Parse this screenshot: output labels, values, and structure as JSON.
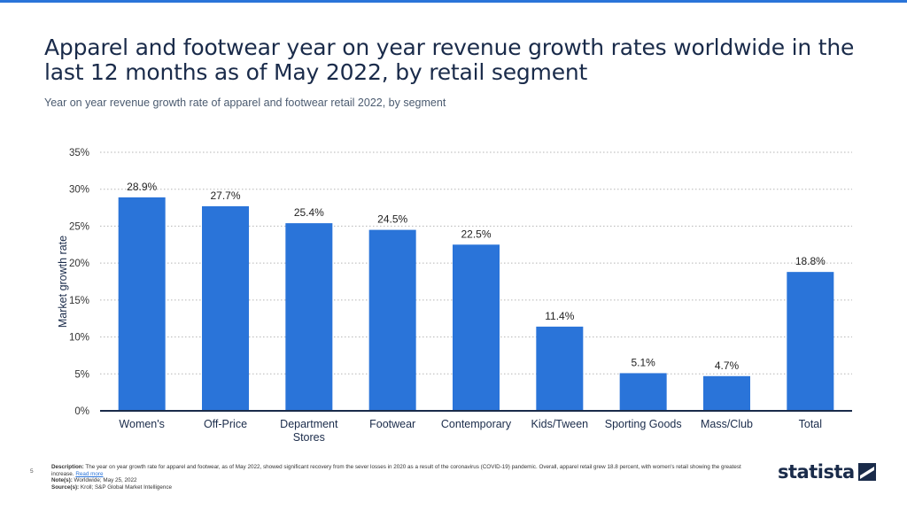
{
  "header": {
    "title": "Apparel and footwear year on year revenue growth rates worldwide in the last 12 months as of May 2022, by retail segment",
    "subtitle": "Year on year revenue growth rate of apparel and footwear retail 2022, by segment"
  },
  "footer": {
    "page_number": "5",
    "description_label": "Description:",
    "description_text": "The year on year growth rate for apparel and footwear, as of May 2022, showed significant recovery from the sever losses in 2020 as a result of the coronavirus (COVID-19) pandemic. Overall, apparel retail grew 18.8 percent, with women's retail showing the greatest increase.",
    "read_more": "Read more",
    "notes_label": "Note(s):",
    "notes_text": "Worldwide; May 25, 2022",
    "source_label": "Source(s):",
    "source_text": "Kroll; S&P Global Market Intelligence",
    "logo_text": "statista"
  },
  "colors": {
    "bar": "#2a74d9",
    "text": "#1a2b4a",
    "grid": "#b5b5b5"
  },
  "chart_data": {
    "type": "bar",
    "title": "Year on year revenue growth rate of apparel and footwear retail 2022, by segment",
    "xlabel": "",
    "ylabel": "Market growth rate",
    "categories": [
      "Women's",
      "Off-Price",
      "Department Stores",
      "Footwear",
      "Contemporary",
      "Kids/Tween",
      "Sporting Goods",
      "Mass/Club",
      "Total"
    ],
    "values": [
      28.9,
      27.7,
      25.4,
      24.5,
      22.5,
      11.4,
      5.1,
      4.7,
      18.8
    ],
    "value_labels": [
      "28.9%",
      "27.7%",
      "25.4%",
      "24.5%",
      "22.5%",
      "11.4%",
      "5.1%",
      "4.7%",
      "18.8%"
    ],
    "ylim": [
      0,
      35
    ],
    "yticks": [
      0,
      5,
      10,
      15,
      20,
      25,
      30,
      35
    ],
    "ytick_labels": [
      "0%",
      "5%",
      "10%",
      "15%",
      "20%",
      "25%",
      "30%",
      "35%"
    ],
    "grid": true
  }
}
